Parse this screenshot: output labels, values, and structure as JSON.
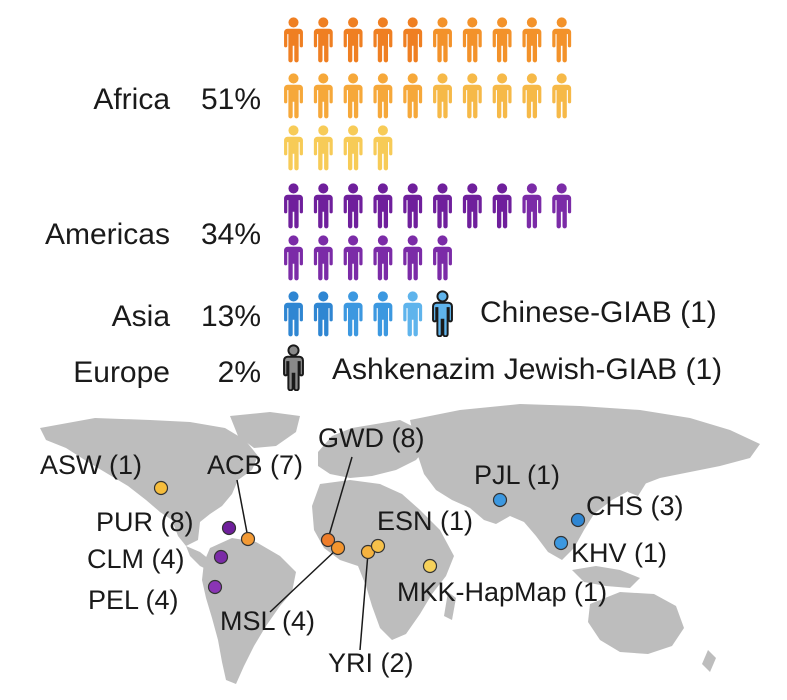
{
  "chart_data": {
    "type": "pictograph",
    "rows": [
      {
        "region": "Africa",
        "percent": "51%",
        "icon_count": 24,
        "colors": [
          "#ef7f22",
          "#f3922a",
          "#f6a83a",
          "#f6b948",
          "#f7cb57"
        ]
      },
      {
        "region": "Americas",
        "percent": "34%",
        "icon_count": 16,
        "colors": [
          "#6f1f9c",
          "#7b2ba7"
        ]
      },
      {
        "region": "Asia",
        "percent": "13%",
        "icon_count": 6,
        "colors": [
          "#2f86d2",
          "#3c98e0",
          "#5fb4ec"
        ],
        "highlight": {
          "label": "Chinese-GIAB (1)",
          "color": "#5fb4ec"
        }
      },
      {
        "region": "Europe",
        "percent": "2%",
        "icon_count": 1,
        "colors": [
          "#8a8a8a"
        ],
        "highlight": {
          "label": "Ashkenazim Jewish-GIAB (1)",
          "color": "#8a8a8a"
        }
      }
    ],
    "map_sites": [
      {
        "code": "ASW (1)",
        "region": "Africa",
        "color": "#f6bd3c"
      },
      {
        "code": "ACB (7)",
        "region": "Africa",
        "color": "#f39a35"
      },
      {
        "code": "GWD (8)",
        "region": "Africa",
        "color": "#ee7d2a"
      },
      {
        "code": "MSL (4)",
        "region": "Africa",
        "color": "#f3952e"
      },
      {
        "code": "YRI (2)",
        "region": "Africa",
        "color": "#f5b23e"
      },
      {
        "code": "ESN (1)",
        "region": "Africa",
        "color": "#f6c14a"
      },
      {
        "code": "MKK-HapMap (1)",
        "region": "Africa",
        "color": "#f6d15a"
      },
      {
        "code": "PUR (8)",
        "region": "Americas",
        "color": "#6f1f9c"
      },
      {
        "code": "CLM (4)",
        "region": "Americas",
        "color": "#7b2ba7"
      },
      {
        "code": "PEL (4)",
        "region": "Americas",
        "color": "#8a35b5"
      },
      {
        "code": "PJL (1)",
        "region": "Asia",
        "color": "#3c98e0"
      },
      {
        "code": "CHS (3)",
        "region": "Asia",
        "color": "#2f86d2"
      },
      {
        "code": "KHV (1)",
        "region": "Asia",
        "color": "#3c98e0"
      }
    ],
    "colors": {
      "land": "#bdbdbd",
      "ink": "#1a1a1a"
    }
  }
}
